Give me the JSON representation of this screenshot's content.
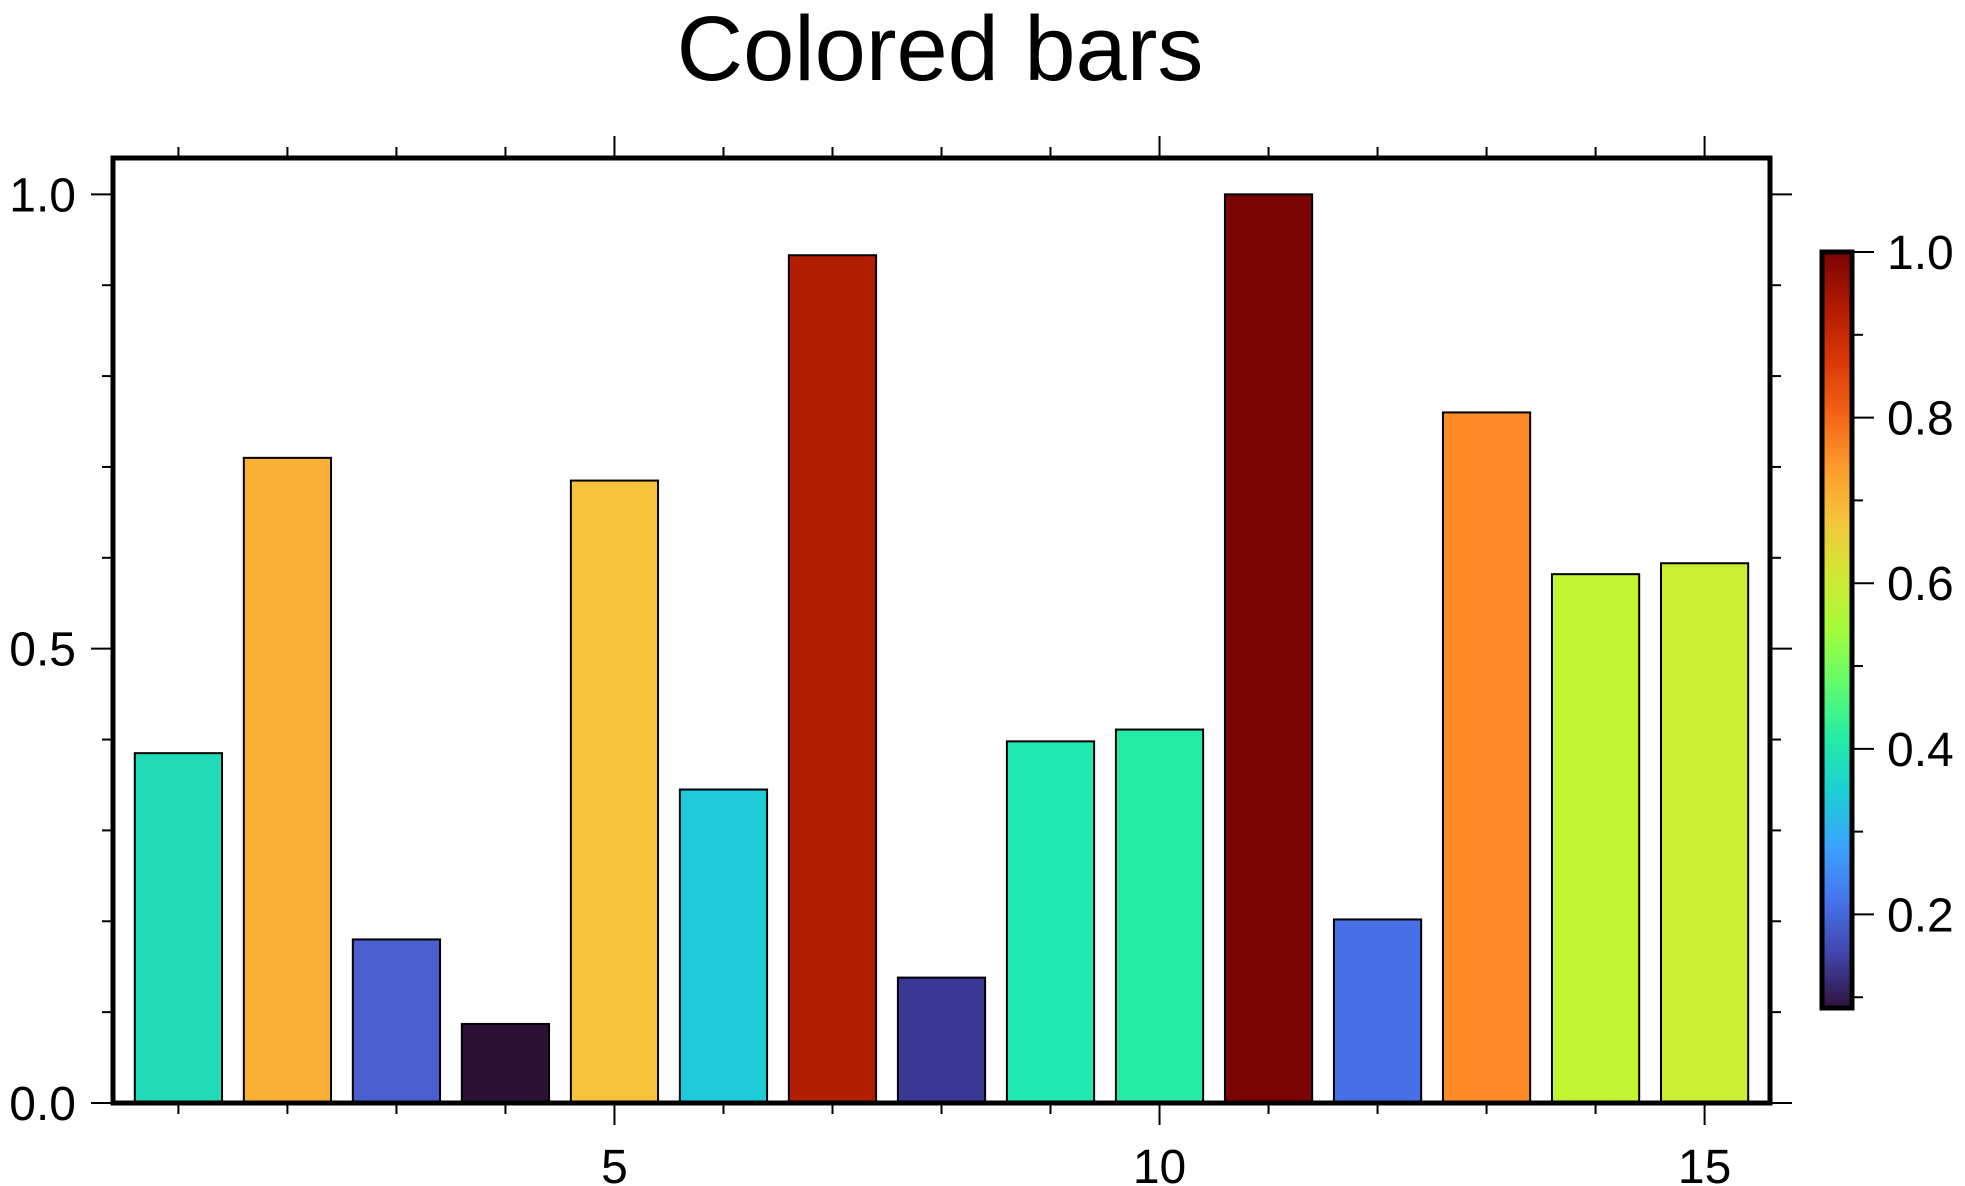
{
  "chart_data": {
    "type": "bar",
    "title": "Colored bars",
    "xlabel": "",
    "ylabel": "",
    "x": [
      1,
      2,
      3,
      4,
      5,
      6,
      7,
      8,
      9,
      10,
      11,
      12,
      13,
      14,
      15
    ],
    "values": [
      0.385,
      0.71,
      0.18,
      0.087,
      0.685,
      0.345,
      0.933,
      0.138,
      0.398,
      0.411,
      1.0,
      0.202,
      0.76,
      0.582,
      0.594
    ],
    "colors": [
      "#22dcb9",
      "#f9b035",
      "#4a5ed0",
      "#2d1036",
      "#f7c13c",
      "#1ec9d9",
      "#b31d02",
      "#393894",
      "#21e7b1",
      "#24eba6",
      "#7a0403",
      "#4870e6",
      "#fd8a26",
      "#c2f432",
      "#c9ef33"
    ],
    "xlim": [
      0.4,
      15.6
    ],
    "ylim": [
      0,
      1.04
    ],
    "x_major_ticks": [
      5,
      10,
      15
    ],
    "x_minor_ticks": [
      1,
      2,
      3,
      4,
      6,
      7,
      8,
      9,
      11,
      12,
      13,
      14
    ],
    "x_tick_labels": [
      "5",
      "10",
      "15"
    ],
    "y_major_ticks": [
      0,
      0.5,
      1.0
    ],
    "y_minor_ticks": [
      0.1,
      0.2,
      0.3,
      0.4,
      0.6,
      0.7,
      0.8,
      0.9
    ],
    "y_tick_labels": [
      "0.0",
      "0.5",
      "1.0"
    ],
    "bar_width": 0.8,
    "grid": false,
    "legend": "none",
    "colorbar": {
      "colormap": "turbo",
      "range": [
        0.087,
        1.0
      ],
      "ticks": [
        0.2,
        0.4,
        0.6,
        0.8,
        1.0
      ],
      "tick_labels": [
        "0.2",
        "0.4",
        "0.6",
        "0.8",
        "1.0"
      ],
      "minor_ticks": [
        0.1,
        0.3,
        0.5,
        0.7,
        0.9
      ],
      "placement": "right"
    }
  }
}
